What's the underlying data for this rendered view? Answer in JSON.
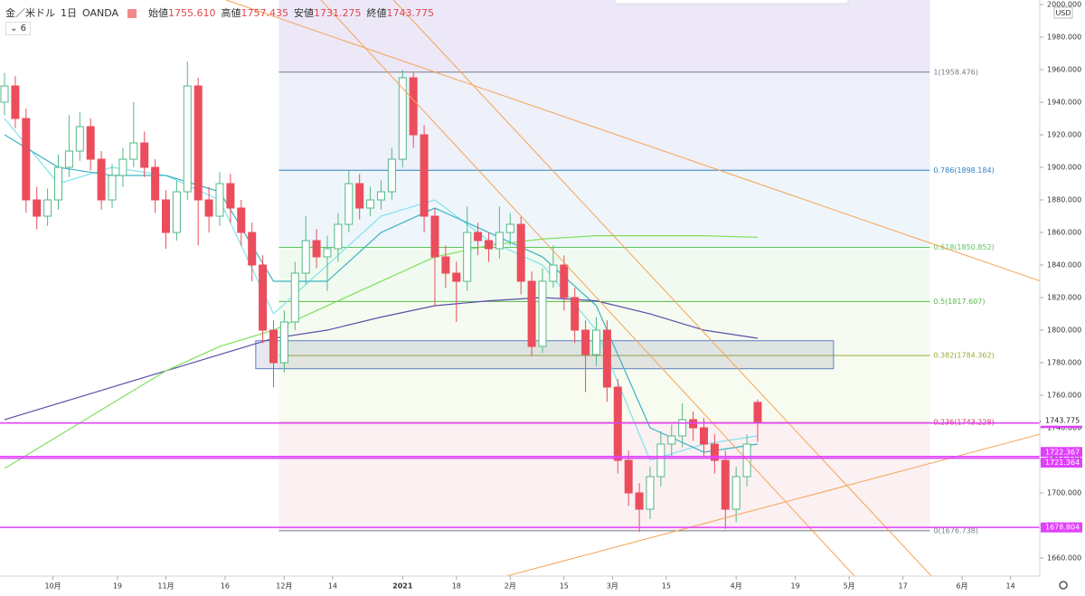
{
  "header": {
    "symbol": "金／米ドル",
    "interval": "1日",
    "source": "OANDA",
    "ohlc": [
      {
        "label": "始値",
        "value": "1755.610"
      },
      {
        "label": "高値",
        "value": "1757.435"
      },
      {
        "label": "安値",
        "value": "1731.275"
      },
      {
        "label": "終値",
        "value": "1743.775"
      }
    ],
    "indicator": "6",
    "currency": "USD"
  },
  "chart_data": {
    "type": "candlestick",
    "up_color": "#53b987",
    "down_color": "#eb4d5c",
    "xlim": [
      -0.84,
      192.44
    ],
    "ylim": [
      1648.9,
      2002.8
    ],
    "xticks": [
      {
        "value": 9,
        "label": "10月"
      },
      {
        "value": 21,
        "label": "19"
      },
      {
        "value": 30,
        "label": "11月"
      },
      {
        "value": 41,
        "label": "16"
      },
      {
        "value": 52,
        "label": "12月"
      },
      {
        "value": 61,
        "label": "14"
      },
      {
        "value": 74,
        "label": "2021"
      },
      {
        "value": 84,
        "label": "18"
      },
      {
        "value": 94,
        "label": "2月"
      },
      {
        "value": 104,
        "label": "15"
      },
      {
        "value": 113,
        "label": "3月"
      },
      {
        "value": 123,
        "label": "15"
      },
      {
        "value": 136,
        "label": "4月"
      },
      {
        "value": 147,
        "label": "19"
      },
      {
        "value": 157,
        "label": "5月"
      },
      {
        "value": 167,
        "label": "17"
      },
      {
        "value": 178,
        "label": "6月"
      },
      {
        "value": 187,
        "label": "14"
      }
    ],
    "yticks": [
      {
        "value": 1660,
        "label": "1660.000"
      },
      {
        "value": 1680,
        "label": "1680.000"
      },
      {
        "value": 1700,
        "label": "1700.000"
      },
      {
        "value": 1720,
        "label": "1720.000"
      },
      {
        "value": 1740,
        "label": "1740.000"
      },
      {
        "value": 1760,
        "label": "1760.000"
      },
      {
        "value": 1780,
        "label": "1780.000"
      },
      {
        "value": 1800,
        "label": "1800.000"
      },
      {
        "value": 1820,
        "label": "1820.000"
      },
      {
        "value": 1840,
        "label": "1840.000"
      },
      {
        "value": 1860,
        "label": "1860.000"
      },
      {
        "value": 1880,
        "label": "1880.000"
      },
      {
        "value": 1900,
        "label": "1900.000"
      },
      {
        "value": 1920,
        "label": "1920.000"
      },
      {
        "value": 1940,
        "label": "1940.000"
      },
      {
        "value": 1960,
        "label": "1960.000"
      },
      {
        "value": 1980,
        "label": "1980.000"
      },
      {
        "value": 2000,
        "label": "2000.000"
      }
    ],
    "x": [
      0,
      2,
      4,
      6,
      8,
      10,
      12,
      14,
      16,
      18,
      20,
      22,
      24,
      26,
      28,
      30,
      32,
      34,
      36,
      38,
      40,
      42,
      44,
      46,
      48,
      50,
      52,
      54,
      56,
      58,
      60,
      62,
      64,
      66,
      68,
      70,
      72,
      74,
      76,
      78,
      80,
      82,
      84,
      86,
      88,
      90,
      92,
      94,
      96,
      98,
      100,
      102,
      104,
      106,
      108,
      110,
      112,
      114,
      116,
      118,
      120,
      122,
      124,
      126,
      128,
      130,
      132,
      134,
      136,
      138,
      140
    ],
    "ohlc": [
      [
        1940,
        1958,
        1932,
        1950
      ],
      [
        1950,
        1956,
        1924,
        1930
      ],
      [
        1930,
        1936,
        1872,
        1880
      ],
      [
        1880,
        1888,
        1862,
        1870
      ],
      [
        1870,
        1887,
        1864,
        1880
      ],
      [
        1880,
        1908,
        1874,
        1900
      ],
      [
        1900,
        1932,
        1894,
        1910
      ],
      [
        1910,
        1934,
        1904,
        1925
      ],
      [
        1925,
        1930,
        1898,
        1905
      ],
      [
        1905,
        1910,
        1874,
        1880
      ],
      [
        1880,
        1902,
        1875,
        1895
      ],
      [
        1895,
        1912,
        1888,
        1905
      ],
      [
        1905,
        1940,
        1900,
        1915
      ],
      [
        1915,
        1922,
        1894,
        1900
      ],
      [
        1900,
        1905,
        1872,
        1880
      ],
      [
        1880,
        1886,
        1850,
        1860
      ],
      [
        1860,
        1892,
        1855,
        1885
      ],
      [
        1885,
        1965,
        1880,
        1950
      ],
      [
        1950,
        1955,
        1852,
        1880
      ],
      [
        1880,
        1888,
        1860,
        1870
      ],
      [
        1870,
        1897,
        1864,
        1890
      ],
      [
        1890,
        1896,
        1866,
        1875
      ],
      [
        1875,
        1880,
        1852,
        1860
      ],
      [
        1860,
        1866,
        1830,
        1840
      ],
      [
        1840,
        1846,
        1792,
        1800
      ],
      [
        1800,
        1806,
        1765,
        1780
      ],
      [
        1780,
        1812,
        1774,
        1805
      ],
      [
        1805,
        1842,
        1800,
        1835
      ],
      [
        1835,
        1870,
        1828,
        1855
      ],
      [
        1855,
        1862,
        1838,
        1845
      ],
      [
        1845,
        1858,
        1824,
        1850
      ],
      [
        1850,
        1872,
        1842,
        1865
      ],
      [
        1865,
        1898,
        1860,
        1890
      ],
      [
        1890,
        1896,
        1868,
        1875
      ],
      [
        1875,
        1888,
        1870,
        1880
      ],
      [
        1880,
        1892,
        1874,
        1885
      ],
      [
        1885,
        1912,
        1880,
        1905
      ],
      [
        1905,
        1960,
        1900,
        1955
      ],
      [
        1955,
        1958,
        1912,
        1920
      ],
      [
        1920,
        1926,
        1860,
        1870
      ],
      [
        1870,
        1875,
        1815,
        1845
      ],
      [
        1845,
        1852,
        1826,
        1835
      ],
      [
        1835,
        1842,
        1805,
        1830
      ],
      [
        1830,
        1876,
        1824,
        1860
      ],
      [
        1860,
        1866,
        1846,
        1855
      ],
      [
        1855,
        1860,
        1842,
        1850
      ],
      [
        1850,
        1876,
        1844,
        1860
      ],
      [
        1860,
        1872,
        1852,
        1865
      ],
      [
        1865,
        1870,
        1822,
        1830
      ],
      [
        1830,
        1836,
        1784,
        1790
      ],
      [
        1790,
        1838,
        1786,
        1830
      ],
      [
        1830,
        1852,
        1826,
        1840
      ],
      [
        1840,
        1846,
        1812,
        1820
      ],
      [
        1820,
        1826,
        1792,
        1800
      ],
      [
        1800,
        1806,
        1762,
        1785
      ],
      [
        1785,
        1808,
        1778,
        1800
      ],
      [
        1800,
        1806,
        1756,
        1765
      ],
      [
        1765,
        1770,
        1712,
        1720
      ],
      [
        1720,
        1726,
        1692,
        1700
      ],
      [
        1700,
        1706,
        1676,
        1690
      ],
      [
        1690,
        1716,
        1684,
        1710
      ],
      [
        1710,
        1738,
        1704,
        1730
      ],
      [
        1730,
        1742,
        1722,
        1735
      ],
      [
        1735,
        1755,
        1728,
        1745
      ],
      [
        1745,
        1750,
        1732,
        1740
      ],
      [
        1740,
        1746,
        1722,
        1730
      ],
      [
        1730,
        1736,
        1712,
        1720
      ],
      [
        1720,
        1726,
        1678,
        1690
      ],
      [
        1690,
        1716,
        1682,
        1710
      ],
      [
        1710,
        1736,
        1704,
        1730
      ],
      [
        1755.61,
        1757.435,
        1731.275,
        1743.775
      ]
    ],
    "series": [
      {
        "color": "#7fe3ee",
        "x": [
          0,
          10,
          20,
          30,
          40,
          50,
          60,
          70,
          80,
          90,
          100,
          110,
          120,
          130,
          140
        ],
        "values": [
          1930,
          1890,
          1900,
          1895,
          1880,
          1810,
          1840,
          1870,
          1880,
          1855,
          1840,
          1800,
          1720,
          1730,
          1735
        ]
      },
      {
        "color": "#3bb3c3",
        "x": [
          0,
          10,
          20,
          30,
          40,
          50,
          60,
          70,
          80,
          90,
          100,
          110,
          120,
          130,
          140
        ],
        "values": [
          1920,
          1900,
          1895,
          1895,
          1885,
          1830,
          1830,
          1860,
          1875,
          1860,
          1845,
          1815,
          1740,
          1725,
          1730
        ]
      },
      {
        "color": "#5b4ea8",
        "x": [
          0,
          10,
          20,
          30,
          40,
          50,
          60,
          70,
          80,
          90,
          100,
          110,
          120,
          130,
          140
        ],
        "values": [
          1745,
          1755,
          1765,
          1775,
          1785,
          1795,
          1800,
          1808,
          1815,
          1818,
          1820,
          1818,
          1810,
          1800,
          1795
        ]
      },
      {
        "color": "#7ee05a",
        "x": [
          0,
          10,
          20,
          30,
          40,
          50,
          60,
          70,
          80,
          90,
          100,
          110,
          120,
          130,
          140
        ],
        "values": [
          1715,
          1735,
          1755,
          1775,
          1790,
          1800,
          1815,
          1830,
          1845,
          1852,
          1856,
          1858,
          1858,
          1858,
          1857
        ]
      }
    ],
    "fib": {
      "x_range": [
        51,
        172
      ],
      "top_fill": "#ece8f8",
      "levels": [
        {
          "value": 1958.476,
          "label": "1(1958.476)",
          "color": "#787b86",
          "fill": "#eef0fa"
        },
        {
          "value": 1898.184,
          "label": "0.786(1898.184)",
          "color": "#2f7fc1",
          "fill": "#eef6fb"
        },
        {
          "value": 1850.852,
          "label": "0.618(1850.852)",
          "color": "#5cc45c",
          "fill": "#f1faf0"
        },
        {
          "value": 1817.607,
          "label": "0.5(1817.607)",
          "color": "#58b84a",
          "fill": "#f5fbf0"
        },
        {
          "value": 1784.362,
          "label": "0.382(1784.362)",
          "color": "#9aa83a",
          "fill": "#f8fbef"
        },
        {
          "value": 1743.228,
          "label": "0.236(1743.228)",
          "color": "#d0345a",
          "fill": "#fbf0f2"
        },
        {
          "value": 1676.738,
          "label": "0(1676.738)",
          "color": "#787b86"
        }
      ]
    },
    "trendlines": [
      {
        "color": "#f5a455",
        "points": [
          [
            41.2,
            2002.8
          ],
          [
            192.4,
            1830.3
          ]
        ]
      },
      {
        "color": "#f5a455",
        "points": [
          [
            58.8,
            2002.8
          ],
          [
            158,
            1648.9
          ]
        ]
      },
      {
        "color": "#f5a455",
        "points": [
          [
            72.3,
            2002.8
          ],
          [
            172.3,
            1648.9
          ]
        ]
      },
      {
        "color": "#f5a455",
        "points": [
          [
            93.3,
            1648.9
          ],
          [
            192.4,
            1736
          ]
        ]
      }
    ],
    "box": {
      "x": [
        46.7,
        154.1
      ],
      "y": [
        1776.3,
        1793.5
      ],
      "color": "#5b7fc4"
    },
    "hlines": {
      "color": "#e040fb",
      "values": [
        1742.908,
        1722.367,
        1721.364,
        1678.804
      ],
      "value_labels": [
        "1742.908",
        "1722.367",
        "1721.364",
        "1678.804"
      ]
    },
    "last_price": {
      "value": 1743.775,
      "label": "1743.775"
    }
  }
}
